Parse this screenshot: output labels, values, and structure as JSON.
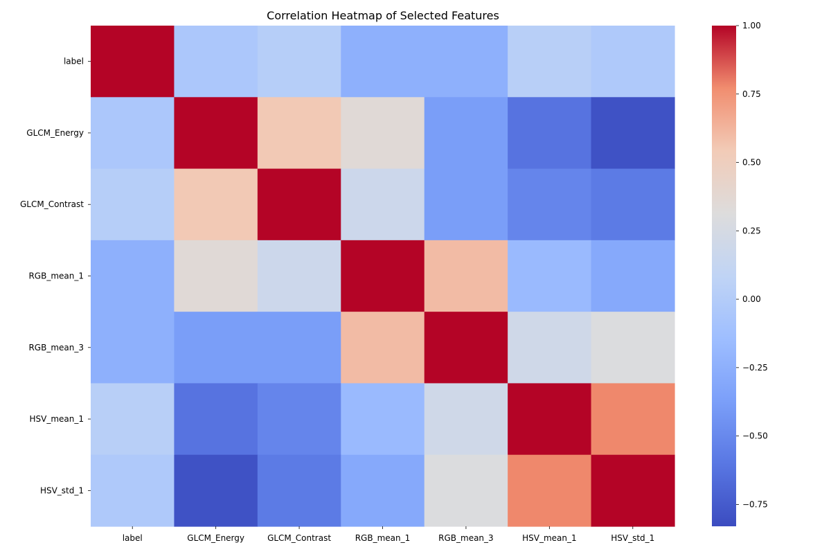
{
  "chart_data": {
    "type": "heatmap",
    "title": "Correlation Heatmap of Selected Features",
    "xlabel": "",
    "ylabel": "",
    "rows": [
      "label",
      "GLCM_Energy",
      "GLCM_Contrast",
      "RGB_mean_1",
      "RGB_mean_3",
      "HSV_mean_1",
      "HSV_std_1"
    ],
    "columns": [
      "label",
      "GLCM_Energy",
      "GLCM_Contrast",
      "RGB_mean_1",
      "RGB_mean_3",
      "HSV_mean_1",
      "HSV_std_1"
    ],
    "values": [
      [
        1.0,
        -0.05,
        0.02,
        -0.25,
        -0.25,
        0.03,
        -0.03
      ],
      [
        -0.05,
        1.0,
        0.55,
        0.35,
        -0.38,
        -0.62,
        -0.8
      ],
      [
        0.02,
        0.55,
        1.0,
        0.18,
        -0.38,
        -0.52,
        -0.58
      ],
      [
        -0.25,
        0.35,
        0.18,
        1.0,
        0.6,
        -0.17,
        -0.3
      ],
      [
        -0.25,
        -0.38,
        -0.38,
        0.6,
        1.0,
        0.2,
        0.3
      ],
      [
        0.03,
        -0.62,
        -0.52,
        -0.17,
        0.2,
        1.0,
        0.78
      ],
      [
        -0.03,
        -0.8,
        -0.58,
        -0.3,
        0.3,
        0.78,
        1.0
      ]
    ],
    "colormap": "coolwarm",
    "colorbar": {
      "min": -0.83,
      "max": 1.0,
      "ticks": [
        1.0,
        0.75,
        0.5,
        0.25,
        0.0,
        -0.25,
        -0.5,
        -0.75
      ],
      "tick_labels": [
        "1.00",
        "0.75",
        "0.50",
        "0.25",
        "0.00",
        "−0.25",
        "−0.50",
        "−0.75"
      ]
    },
    "colors": {
      "cold_end": "#3b4cc0",
      "neutral": "#dddddd",
      "warm_end": "#b40426"
    }
  }
}
